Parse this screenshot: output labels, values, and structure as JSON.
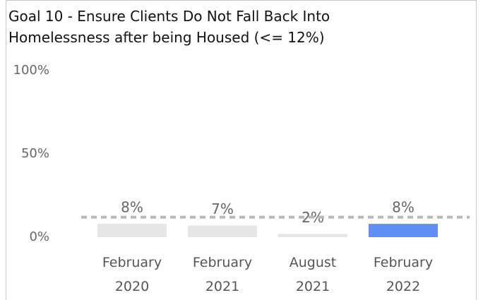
{
  "chart_data": {
    "type": "bar",
    "title": "Goal 10 - Ensure Clients Do Not Fall Back Into Homelessness after being Housed (<= 12%)",
    "categories": [
      "February 2020",
      "February 2021",
      "August 2021",
      "February 2022"
    ],
    "values": [
      8,
      7,
      2,
      8
    ],
    "value_labels": [
      "8%",
      "7%",
      "2%",
      "8%"
    ],
    "colors": [
      "#e6e6e6",
      "#e6e6e6",
      "#e6e6e6",
      "#5f8ff5"
    ],
    "target_line": 12,
    "target_color": "#b8b8b8",
    "ylim": [
      0,
      100
    ],
    "yticks": [
      {
        "value": 0,
        "label": "0%"
      },
      {
        "value": 50,
        "label": "50%"
      },
      {
        "value": 100,
        "label": "100%"
      }
    ],
    "grid": false
  }
}
